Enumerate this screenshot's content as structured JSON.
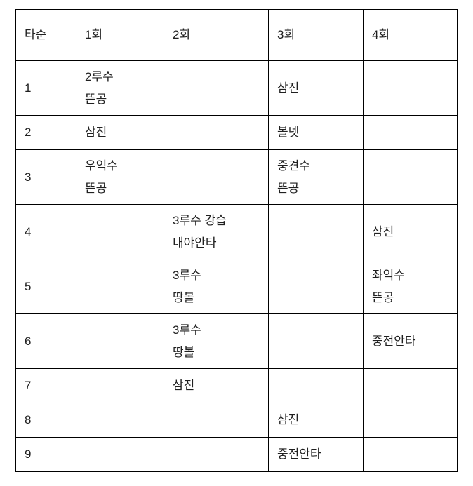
{
  "colors": {
    "background": "#ffffff",
    "border": "#000000",
    "text": "#202020"
  },
  "table": {
    "columns": [
      "타순",
      "1회",
      "2회",
      "3회",
      "4회"
    ],
    "rows": [
      {
        "order": "1",
        "cells": [
          "2루수\n뜬공",
          "",
          "삼진",
          ""
        ]
      },
      {
        "order": "2",
        "cells": [
          "삼진",
          "",
          "볼넷",
          ""
        ]
      },
      {
        "order": "3",
        "cells": [
          "우익수\n뜬공",
          "",
          "중견수\n뜬공",
          ""
        ]
      },
      {
        "order": "4",
        "cells": [
          "",
          "3루수 강습\n내야안타",
          "",
          "삼진"
        ]
      },
      {
        "order": "5",
        "cells": [
          "",
          "3루수\n땅볼",
          "",
          "좌익수\n뜬공"
        ]
      },
      {
        "order": "6",
        "cells": [
          "",
          "3루수\n땅볼",
          "",
          "중전안타"
        ]
      },
      {
        "order": "7",
        "cells": [
          "",
          "삼진",
          "",
          ""
        ]
      },
      {
        "order": "8",
        "cells": [
          "",
          "",
          "삼진",
          ""
        ]
      },
      {
        "order": "9",
        "cells": [
          "",
          "",
          "중전안타",
          ""
        ]
      }
    ]
  }
}
